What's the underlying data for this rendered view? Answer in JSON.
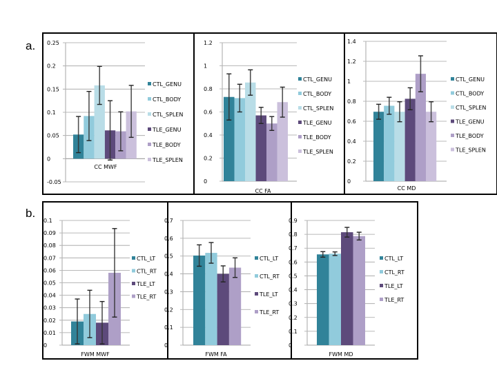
{
  "panels": {
    "a": {
      "label": "a."
    },
    "b": {
      "label": "b."
    }
  },
  "colors": {
    "CTL_GENU": "#318399",
    "CTL_BODY": "#91cbdc",
    "CTL_SPLEN": "#b9dde7",
    "TLE_GENU": "#5d4a7b",
    "TLE_BODY": "#ae9fc7",
    "TLE_SPLEN": "#cbc0dc",
    "CTL_LT": "#318399",
    "CTL_RT": "#91cbdc",
    "TLE_LT": "#5d4a7b",
    "TLE_RT": "#ae9fc7"
  },
  "chart_data": [
    {
      "id": "cc-mwf",
      "panel": "a",
      "type": "bar",
      "title": "",
      "xlabel": "CC MWF",
      "ylabel": "",
      "categories": [
        "CC MWF"
      ],
      "ylim": [
        -0.05,
        0.25
      ],
      "yticks": [
        0.25,
        0.2,
        0.15,
        0.1,
        0.05,
        0,
        -0.05
      ],
      "ytick_labels": [
        "0.25",
        "0.2",
        "0.15",
        "0.1",
        "0.05",
        "0",
        "-0.05"
      ],
      "grid": true,
      "legend": "right",
      "series": [
        {
          "name": "CTL_GENU",
          "values": [
            0.052
          ],
          "error": [
            0.039
          ]
        },
        {
          "name": "CTL_BODY",
          "values": [
            0.092
          ],
          "error": [
            0.053
          ]
        },
        {
          "name": "CTL_SPLEN",
          "values": [
            0.158
          ],
          "error": [
            0.041
          ]
        },
        {
          "name": "TLE_GENU",
          "values": [
            0.061
          ],
          "error": [
            0.064
          ]
        },
        {
          "name": "TLE_BODY",
          "values": [
            0.059
          ],
          "error": [
            0.042
          ]
        },
        {
          "name": "TLE_SPLEN",
          "values": [
            0.102
          ],
          "error": [
            0.056
          ]
        }
      ]
    },
    {
      "id": "cc-fa",
      "panel": "a",
      "type": "bar",
      "title": "",
      "xlabel": "CC FA",
      "ylabel": "",
      "categories": [
        "CC FA"
      ],
      "ylim": [
        0,
        1.2
      ],
      "yticks": [
        1.2,
        1,
        0.8,
        0.6,
        0.4,
        0.2,
        0
      ],
      "ytick_labels": [
        "1.2",
        "1",
        "0.8",
        "0.6",
        "0.4",
        "0.2",
        "0"
      ],
      "grid": true,
      "legend": "right",
      "series": [
        {
          "name": "CTL_GENU",
          "values": [
            0.73
          ],
          "error": [
            0.2
          ]
        },
        {
          "name": "CTL_BODY",
          "values": [
            0.72
          ],
          "error": [
            0.12
          ]
        },
        {
          "name": "CTL_SPLEN",
          "values": [
            0.855
          ],
          "error": [
            0.11
          ]
        },
        {
          "name": "TLE_GENU",
          "values": [
            0.57
          ],
          "error": [
            0.07
          ]
        },
        {
          "name": "TLE_BODY",
          "values": [
            0.5
          ],
          "error": [
            0.06
          ]
        },
        {
          "name": "TLE_SPLEN",
          "values": [
            0.685
          ],
          "error": [
            0.13
          ]
        }
      ]
    },
    {
      "id": "cc-md",
      "panel": "a",
      "type": "bar",
      "title": "",
      "xlabel": "CC MD",
      "ylabel": "",
      "categories": [
        "CC MD"
      ],
      "ylim": [
        0,
        1.4
      ],
      "yticks": [
        1.4,
        1.2,
        1,
        0.8,
        0.6,
        0.4,
        0.2,
        0
      ],
      "ytick_labels": [
        "1.4",
        "1.2",
        "1",
        "0.8",
        "0.6",
        "0.4",
        "0.2",
        "0"
      ],
      "grid": true,
      "legend": "right",
      "series": [
        {
          "name": "CTL_GENU",
          "values": [
            0.695
          ],
          "error": [
            0.075
          ]
        },
        {
          "name": "CTL_BODY",
          "values": [
            0.755
          ],
          "error": [
            0.085
          ]
        },
        {
          "name": "CTL_SPLEN",
          "values": [
            0.695
          ],
          "error": [
            0.1
          ]
        },
        {
          "name": "TLE_GENU",
          "values": [
            0.825
          ],
          "error": [
            0.11
          ]
        },
        {
          "name": "TLE_BODY",
          "values": [
            1.075
          ],
          "error": [
            0.18
          ]
        },
        {
          "name": "TLE_SPLEN",
          "values": [
            0.695
          ],
          "error": [
            0.1
          ]
        }
      ]
    },
    {
      "id": "fwm-mwf",
      "panel": "b",
      "type": "bar",
      "title": "",
      "xlabel": "FWM MWF",
      "ylabel": "",
      "categories": [
        "FWM MWF"
      ],
      "ylim": [
        0,
        0.1
      ],
      "yticks": [
        0.1,
        0.09,
        0.08,
        0.07,
        0.06,
        0.05,
        0.04,
        0.03,
        0.02,
        0.01,
        0
      ],
      "ytick_labels": [
        "0.1",
        "0.09",
        "0.08",
        "0.07",
        "0.06",
        "0.05",
        "0.04",
        "0.03",
        "0.02",
        "0.01",
        "0"
      ],
      "grid": true,
      "legend": "right",
      "series": [
        {
          "name": "CTL_LT",
          "values": [
            0.019
          ],
          "error": [
            0.018
          ]
        },
        {
          "name": "CTL_RT",
          "values": [
            0.025
          ],
          "error": [
            0.019
          ]
        },
        {
          "name": "TLE_LT",
          "values": [
            0.018
          ],
          "error": [
            0.017
          ]
        },
        {
          "name": "TLE_RT",
          "values": [
            0.058
          ],
          "error": [
            0.0355
          ]
        }
      ]
    },
    {
      "id": "fwm-fa",
      "panel": "b",
      "type": "bar",
      "title": "",
      "xlabel": "FWM FA",
      "ylabel": "",
      "categories": [
        "FWM FA"
      ],
      "ylim": [
        0,
        0.7
      ],
      "yticks": [
        0.7,
        0.6,
        0.5,
        0.4,
        0.3,
        0.2,
        0.1,
        0
      ],
      "ytick_labels": [
        "0.7",
        "0.6",
        "0.5",
        "0.4",
        "0.3",
        "0.2",
        "0.1",
        "0"
      ],
      "grid": true,
      "legend": "right",
      "series": [
        {
          "name": "CTL_LT",
          "values": [
            0.503
          ],
          "error": [
            0.06
          ]
        },
        {
          "name": "CTL_RT",
          "values": [
            0.518
          ],
          "error": [
            0.058
          ]
        },
        {
          "name": "TLE_LT",
          "values": [
            0.4
          ],
          "error": [
            0.045
          ]
        },
        {
          "name": "TLE_RT",
          "values": [
            0.435
          ],
          "error": [
            0.055
          ]
        }
      ]
    },
    {
      "id": "fwm-md",
      "panel": "b",
      "type": "bar",
      "title": "",
      "xlabel": "FWM MD",
      "ylabel": "",
      "categories": [
        "FWM MD"
      ],
      "ylim": [
        0,
        0.9
      ],
      "yticks": [
        0.9,
        0.8,
        0.7,
        0.6,
        0.5,
        0.4,
        0.3,
        0.2,
        0.1,
        0
      ],
      "ytick_labels": [
        "0.9",
        "0.8",
        "0.7",
        "0.6",
        "0.5",
        "0.4",
        "0.3",
        "0.2",
        "0.1",
        "0"
      ],
      "grid": true,
      "legend": "right",
      "series": [
        {
          "name": "CTL_LT",
          "values": [
            0.655
          ],
          "error": [
            0.02
          ]
        },
        {
          "name": "CTL_RT",
          "values": [
            0.66
          ],
          "error": [
            0.013
          ]
        },
        {
          "name": "TLE_LT",
          "values": [
            0.815
          ],
          "error": [
            0.035
          ]
        },
        {
          "name": "TLE_RT",
          "values": [
            0.787
          ],
          "error": [
            0.028
          ]
        }
      ]
    }
  ]
}
